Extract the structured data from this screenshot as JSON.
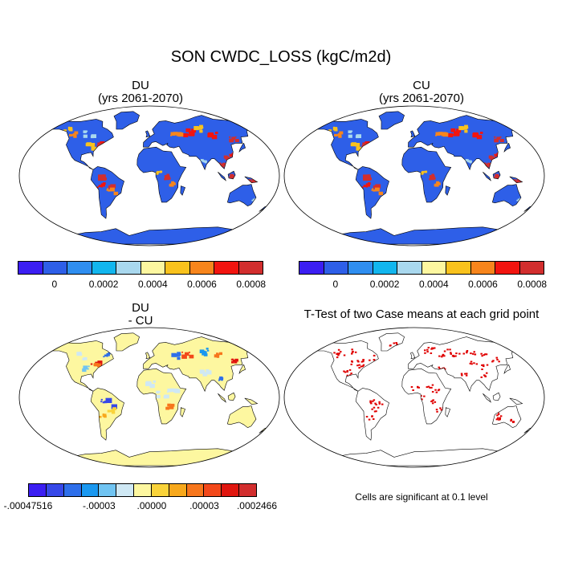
{
  "figure": {
    "title": "SON CWDC_LOSS (kgC/m2d)"
  },
  "panels": [
    {
      "id": "du",
      "title_line1": "DU",
      "title_line2": "(yrs 2061-2070)"
    },
    {
      "id": "cu",
      "title_line1": "CU",
      "title_line2": "(yrs 2061-2070)"
    },
    {
      "id": "diff",
      "title_line1": "DU",
      "title_line2": "- CU"
    },
    {
      "id": "ttest",
      "title_line1": "T-Test of two Case means at each grid point",
      "title_line2": ""
    }
  ],
  "colorbar_main": {
    "colors": [
      "#3b1ef2",
      "#2e5fe8",
      "#2f8ef0",
      "#12b6ee",
      "#a9d8ee",
      "#fdf7a0",
      "#f9c21d",
      "#f7851c",
      "#f2140f",
      "#d22e2e"
    ],
    "ticks": [
      "0",
      "0.0002",
      "0.0004",
      "0.0006",
      "0.0008"
    ]
  },
  "colorbar_diff": {
    "colors": [
      "#3b1ef2",
      "#3648e8",
      "#2e6fea",
      "#1a98f0",
      "#70c4f2",
      "#cfe8f4",
      "#fdf7a0",
      "#f9d33a",
      "#f7a81c",
      "#f7761c",
      "#f2481a",
      "#e0160f",
      "#d22e2e"
    ],
    "ticks": [
      "-.00047516",
      "-.00003",
      ".00000",
      ".00003",
      ".0002466"
    ]
  },
  "ttest_note": "Cells are significant at 0.1 level",
  "colors": {
    "ocean": "#ffffff",
    "land_low": "#2e5fe8",
    "land_diff_neutral": "#fdf7a0",
    "significant": "#e00000"
  }
}
